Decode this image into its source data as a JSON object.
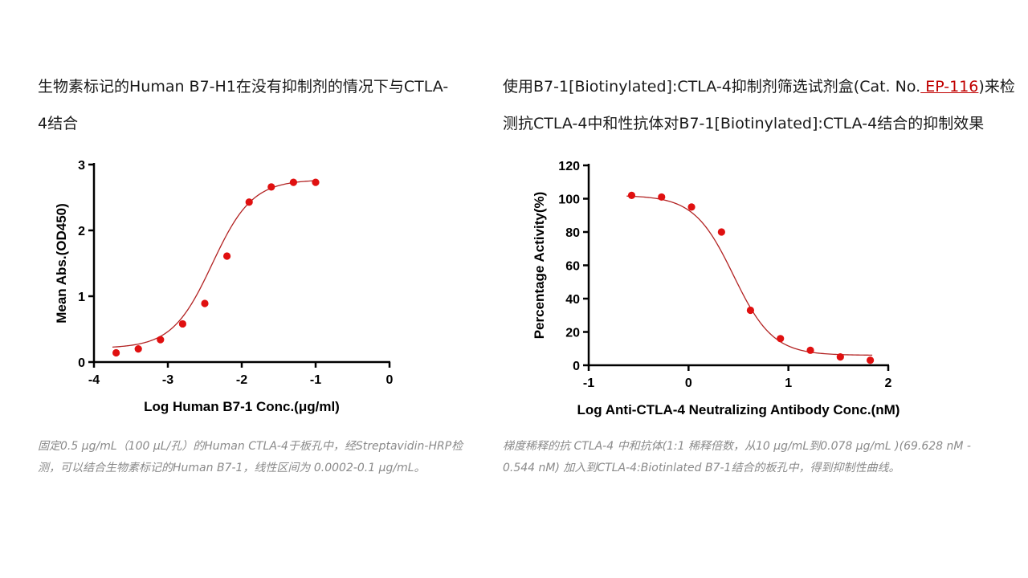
{
  "left_panel": {
    "title": "生物素标记的Human  B7-H1在没有抑制剂的情况下与CTLA-4结合",
    "caption": "固定0.5 μg/mL（100 μL/孔）的Human CTLA-4于板孔中，经Streptavidin-HRP检测，可以结合生物素标记的Human B7-1，线性区间为 0.0002-0.1 μg/mL。"
  },
  "right_panel": {
    "title_before": "使用B7-1[Biotinylated]:CTLA-4抑制剂筛选试剂盒(Cat.  No.",
    "cat_link": " EP-116",
    "title_after": ")来检测抗CTLA-4中和性抗体对B7-1[Biotinylated]:CTLA-4结合的抑制效果",
    "caption": "梯度稀释的抗 CTLA-4 中和抗体(1:1 稀释倍数，从10 μg/mL到0.078 μg/mL )(69.628 nM - 0.544 nM) 加入到CTLA-4:Biotinlated  B7-1结合的板孔中，得到抑制性曲线。"
  },
  "colors": {
    "curve": "#b22222",
    "point": "#e01010",
    "link": "#c00000",
    "caption": "#8a8a8a"
  },
  "chart_data": [
    {
      "type": "scatter",
      "fit": "sigmoidal",
      "title": "",
      "xlabel": "Log Human B7-1 Conc.(μg/ml)",
      "ylabel": "Mean Abs.(OD450)",
      "xlim": [
        -4,
        0
      ],
      "ylim": [
        0,
        3
      ],
      "xticks": [
        -4,
        -3,
        -2,
        -1,
        0
      ],
      "yticks": [
        0,
        1,
        2,
        3
      ],
      "grid": false,
      "series": [
        {
          "x": [
            -3.7,
            -3.4,
            -3.1,
            -2.8,
            -2.5,
            -2.2,
            -1.9,
            -1.6,
            -1.3,
            -1.0
          ],
          "y": [
            0.14,
            0.2,
            0.34,
            0.58,
            0.89,
            1.61,
            2.43,
            2.66,
            2.73,
            2.73
          ]
        }
      ],
      "fit_params": {
        "bottom": 0.21,
        "top": 2.77,
        "logEC50": -2.4,
        "hill": 1.6
      }
    },
    {
      "type": "scatter",
      "fit": "sigmoidal",
      "title": "",
      "xlabel": "Log Anti-CTLA-4 Neutralizing Antibody Conc.(nM)",
      "ylabel": "Percentage Activity(%)",
      "xlim": [
        -1,
        2
      ],
      "ylim": [
        0,
        120
      ],
      "xticks": [
        -1,
        0,
        1,
        2
      ],
      "yticks": [
        0,
        20,
        40,
        60,
        80,
        100,
        120
      ],
      "grid": false,
      "series": [
        {
          "x": [
            -0.57,
            -0.27,
            0.03,
            0.33,
            0.62,
            0.92,
            1.22,
            1.52,
            1.82
          ],
          "y": [
            102,
            101,
            95,
            80,
            33,
            16,
            9,
            5,
            3
          ]
        }
      ],
      "fit_params": {
        "bottom": 6,
        "top": 102,
        "logEC50": 0.45,
        "hill": -2.2
      }
    }
  ]
}
